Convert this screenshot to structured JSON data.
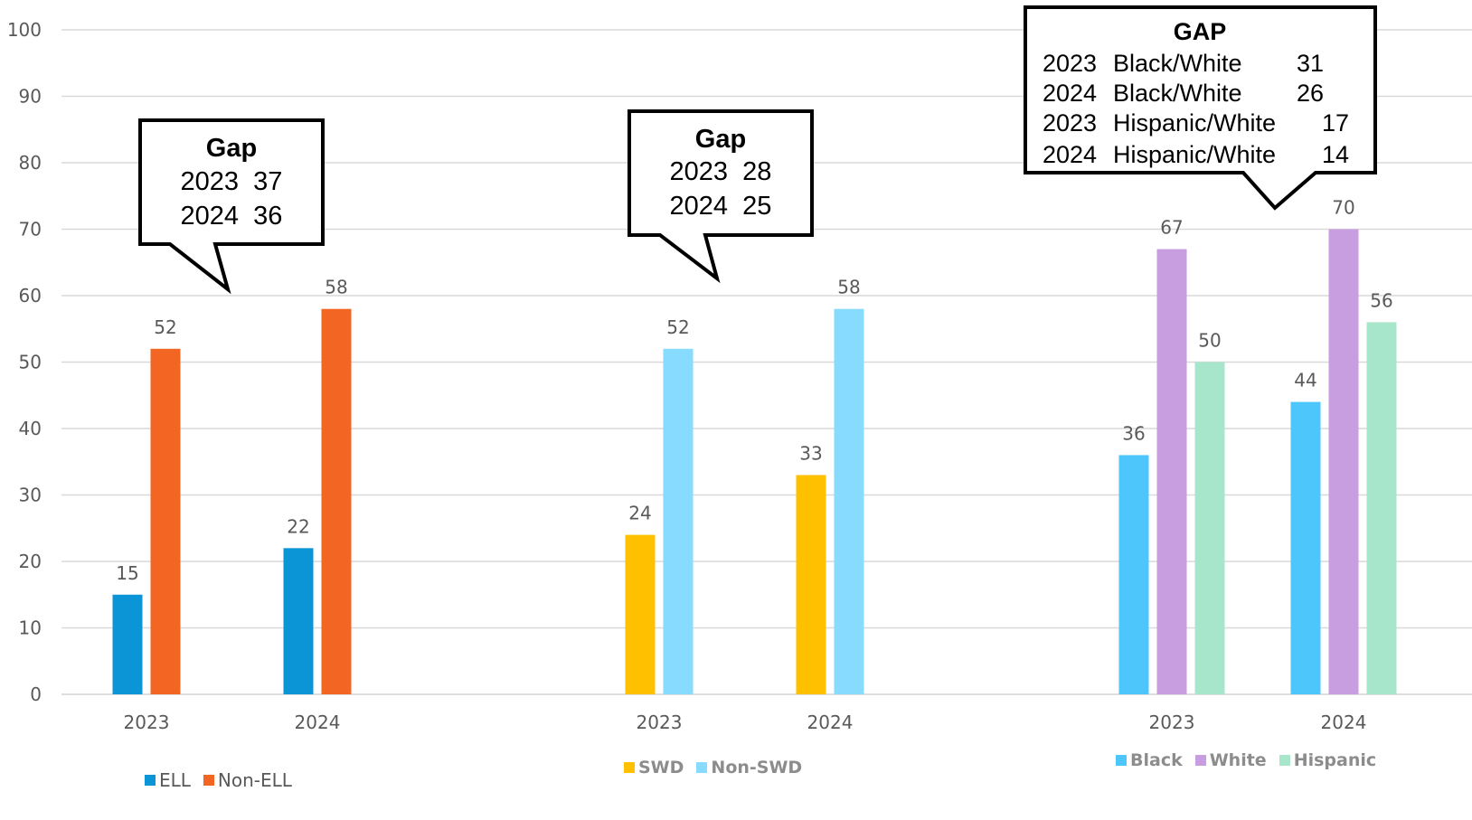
{
  "chart_data": {
    "type": "bar",
    "ylim": [
      0,
      100
    ],
    "yticks": [
      0,
      10,
      20,
      30,
      40,
      50,
      60,
      70,
      80,
      90,
      100
    ],
    "grid": true,
    "colors": {
      "ELL": "#0b95d6",
      "Non-ELL": "#f26522",
      "SWD": "#ffc000",
      "Non-SWD": "#86dbff",
      "Black": "#4dc6fb",
      "White": "#c99ee0",
      "Hispanic": "#a8e6cb"
    },
    "groups": [
      {
        "categories": [
          "2023",
          "2024"
        ],
        "series": [
          {
            "name": "ELL",
            "values": [
              15,
              22
            ]
          },
          {
            "name": "Non-ELL",
            "values": [
              52,
              58
            ]
          }
        ],
        "legend": [
          "ELL",
          "Non-ELL"
        ]
      },
      {
        "categories": [
          "2023",
          "2024"
        ],
        "series": [
          {
            "name": "SWD",
            "values": [
              24,
              33
            ]
          },
          {
            "name": "Non-SWD",
            "values": [
              52,
              58
            ]
          }
        ],
        "legend": [
          "SWD",
          "Non-SWD"
        ]
      },
      {
        "categories": [
          "2023",
          "2024"
        ],
        "series": [
          {
            "name": "Black",
            "values": [
              36,
              44
            ]
          },
          {
            "name": "White",
            "values": [
              67,
              70
            ]
          },
          {
            "name": "Hispanic",
            "values": [
              50,
              56
            ]
          }
        ],
        "legend": [
          "Black",
          "White",
          "Hispanic"
        ]
      }
    ],
    "callouts": [
      {
        "title": "Gap",
        "rows": [
          "2023  37",
          "2024  36"
        ]
      },
      {
        "title": "Gap",
        "rows": [
          "2023  28",
          "2024  25"
        ]
      },
      {
        "title": "GAP",
        "rows": [
          [
            "2023",
            "Black/White",
            "31"
          ],
          [
            "2024",
            "Black/White",
            "26"
          ],
          [
            "2023",
            "Hispanic/White",
            "17"
          ],
          [
            "2024",
            "Hispanic/White",
            "14"
          ]
        ]
      }
    ]
  }
}
